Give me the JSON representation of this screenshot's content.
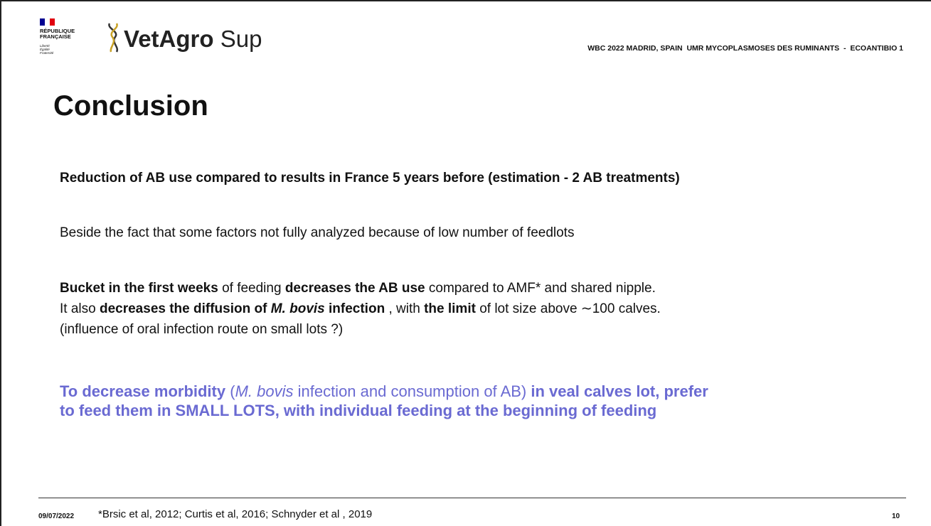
{
  "logo": {
    "republic": [
      "RÉPUBLIQUE",
      "FRANÇAISE"
    ],
    "motto": [
      "Liberté",
      "Égalité",
      "Fraternité"
    ],
    "brand": "VetAgro",
    "brand_suffix": "Sup"
  },
  "header": {
    "event": "WBC 2022 MADRID, SPAIN  UMR MYCOPLASMOSES DES RUMINANTS  -  ECOANTIBIO 1"
  },
  "title": "Conclusion",
  "paragraphs": [
    {
      "lines": [
        [
          {
            "text": "Reduction of AB use compared to results in France 5 years before (estimation - 2 AB treatments)",
            "bold": true
          }
        ]
      ]
    },
    {
      "lines": [
        [
          {
            "text": "Beside the fact that some factors not fully analyzed because of low number of feedlots"
          }
        ]
      ]
    },
    {
      "lines": [
        [
          {
            "text": "Bucket in the first weeks",
            "bold": true
          },
          {
            "text": " of feeding "
          },
          {
            "text": "decreases the AB use",
            "bold": true
          },
          {
            "text": " compared to AMF* and shared nipple."
          }
        ],
        [
          {
            "text": "It also "
          },
          {
            "text": "decreases the diffusion of ",
            "bold": true
          },
          {
            "text": "M. bovis",
            "bold": true,
            "italic": true
          },
          {
            "text": " infection",
            "bold": true
          },
          {
            "text": " , with "
          },
          {
            "text": "the limit",
            "bold": true
          },
          {
            "text": " of lot size above ∼100 calves."
          }
        ],
        [
          {
            "text": "(influence of oral infection route on small lots ?)"
          }
        ]
      ]
    },
    {
      "color": "#6a6ad2",
      "lines": [
        [
          {
            "text": "To decrease morbidity",
            "bold": true
          },
          {
            "text": " ("
          },
          {
            "text": "M. bovis",
            "italic": true
          },
          {
            "text": " infection and consumption of AB) "
          },
          {
            "text": "in veal calves lot, prefer to feed them in SMALL LOTS, with individual feeding at the beginning of feeding",
            "bold": true
          }
        ]
      ]
    }
  ],
  "footer": {
    "date": "09/07/2022",
    "references": "*Brsic et al, 2012; Curtis et al, 2016; Schnyder et al , 2019",
    "page": "10"
  }
}
